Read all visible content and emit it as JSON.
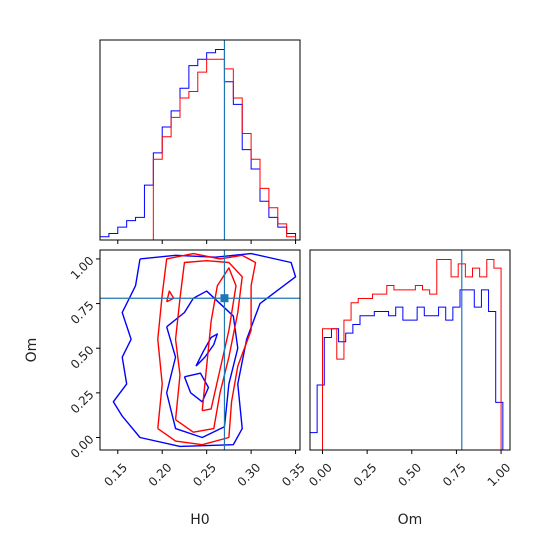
{
  "chart_data": [
    {
      "type": "histogram",
      "panel": "H0-marginal",
      "xlim": [
        0.13,
        0.355
      ],
      "truth_value": 0.27,
      "bin_width": 0.01,
      "series": [
        {
          "color": "#0000ff",
          "bins": [
            0.13,
            0.14,
            0.15,
            0.16,
            0.17,
            0.18,
            0.19,
            0.2,
            0.21,
            0.22,
            0.23,
            0.24,
            0.25,
            0.26,
            0.27,
            0.28,
            0.29,
            0.3,
            0.31,
            0.32,
            0.33,
            0.34,
            0.35
          ],
          "counts": [
            1,
            2,
            4,
            6,
            7,
            17,
            27,
            35,
            40,
            47,
            54,
            56,
            58,
            59,
            49,
            42,
            28,
            22,
            12,
            7,
            4,
            2
          ]
        },
        {
          "color": "#ff0000",
          "bins": [
            0.19,
            0.2,
            0.21,
            0.22,
            0.23,
            0.24,
            0.25,
            0.26,
            0.27,
            0.28,
            0.29,
            0.3,
            0.31,
            0.32,
            0.33,
            0.34,
            0.35
          ],
          "counts": [
            25,
            32,
            38,
            44,
            46,
            52,
            56,
            56,
            53,
            44,
            33,
            25,
            16,
            10,
            5,
            1
          ]
        }
      ]
    },
    {
      "type": "contour",
      "panel": "H0-Om-joint",
      "xlabel": "H0",
      "ylabel": "Om",
      "xlim": [
        0.13,
        0.355
      ],
      "ylim": [
        -0.07,
        1.05
      ],
      "xticks": [
        "0.15",
        "0.20",
        "0.25",
        "0.30",
        "0.35"
      ],
      "yticks": [
        "0.00",
        "0.25",
        "0.50",
        "0.75",
        "1.00"
      ],
      "truth_point": [
        0.27,
        0.78
      ],
      "series": [
        {
          "color": "#0000ff",
          "contours": [
            [
              [
                0.175,
                1.0
              ],
              [
                0.215,
                1.02
              ],
              [
                0.26,
                1.01
              ],
              [
                0.3,
                1.03
              ],
              [
                0.345,
                0.98
              ],
              [
                0.35,
                0.9
              ],
              [
                0.31,
                0.75
              ],
              [
                0.295,
                0.55
              ],
              [
                0.285,
                0.3
              ],
              [
                0.29,
                0.05
              ],
              [
                0.28,
                -0.04
              ],
              [
                0.22,
                -0.05
              ],
              [
                0.175,
                0.0
              ],
              [
                0.155,
                0.12
              ],
              [
                0.145,
                0.2
              ],
              [
                0.16,
                0.3
              ],
              [
                0.155,
                0.45
              ],
              [
                0.165,
                0.55
              ],
              [
                0.155,
                0.7
              ],
              [
                0.17,
                0.85
              ],
              [
                0.175,
                1.0
              ]
            ],
            [
              [
                0.205,
                0.62
              ],
              [
                0.215,
                0.45
              ],
              [
                0.205,
                0.25
              ],
              [
                0.215,
                0.05
              ],
              [
                0.245,
                0.0
              ],
              [
                0.27,
                0.06
              ],
              [
                0.275,
                0.3
              ],
              [
                0.285,
                0.5
              ],
              [
                0.28,
                0.68
              ],
              [
                0.265,
                0.75
              ],
              [
                0.25,
                0.82
              ],
              [
                0.235,
                0.78
              ],
              [
                0.225,
                0.7
              ],
              [
                0.205,
                0.62
              ]
            ],
            [
              [
                0.225,
                0.34
              ],
              [
                0.232,
                0.25
              ],
              [
                0.245,
                0.2
              ],
              [
                0.252,
                0.28
              ],
              [
                0.243,
                0.36
              ],
              [
                0.225,
                0.34
              ]
            ],
            [
              [
                0.238,
                0.4
              ],
              [
                0.248,
                0.45
              ],
              [
                0.258,
                0.52
              ],
              [
                0.262,
                0.58
              ],
              [
                0.255,
                0.56
              ],
              [
                0.246,
                0.48
              ],
              [
                0.238,
                0.4
              ]
            ]
          ]
        },
        {
          "color": "#ff0000",
          "contours": [
            [
              [
                0.195,
                0.05
              ],
              [
                0.2,
                0.3
              ],
              [
                0.195,
                0.55
              ],
              [
                0.2,
                0.8
              ],
              [
                0.205,
                1.0
              ],
              [
                0.235,
                1.03
              ],
              [
                0.265,
                1.0
              ],
              [
                0.29,
                1.02
              ],
              [
                0.305,
                0.98
              ],
              [
                0.3,
                0.85
              ],
              [
                0.3,
                0.6
              ],
              [
                0.285,
                0.4
              ],
              [
                0.278,
                0.2
              ],
              [
                0.275,
                0.0
              ],
              [
                0.245,
                -0.04
              ],
              [
                0.215,
                -0.02
              ],
              [
                0.195,
                0.05
              ]
            ],
            [
              [
                0.215,
                0.1
              ],
              [
                0.22,
                0.35
              ],
              [
                0.215,
                0.55
              ],
              [
                0.22,
                0.78
              ],
              [
                0.225,
                0.98
              ],
              [
                0.25,
                0.99
              ],
              [
                0.275,
                0.98
              ],
              [
                0.29,
                0.9
              ],
              [
                0.285,
                0.7
              ],
              [
                0.275,
                0.45
              ],
              [
                0.265,
                0.25
              ],
              [
                0.258,
                0.05
              ],
              [
                0.235,
                0.03
              ],
              [
                0.215,
                0.1
              ]
            ],
            [
              [
                0.245,
                0.15
              ],
              [
                0.25,
                0.4
              ],
              [
                0.255,
                0.65
              ],
              [
                0.262,
                0.85
              ],
              [
                0.275,
                0.95
              ],
              [
                0.283,
                0.85
              ],
              [
                0.275,
                0.6
              ],
              [
                0.265,
                0.38
              ],
              [
                0.255,
                0.16
              ],
              [
                0.245,
                0.15
              ]
            ],
            [
              [
                0.205,
                0.76
              ],
              [
                0.208,
                0.82
              ],
              [
                0.213,
                0.78
              ],
              [
                0.205,
                0.76
              ]
            ]
          ]
        }
      ]
    },
    {
      "type": "histogram",
      "panel": "Om-marginal",
      "xlabel": "Om",
      "xlim": [
        -0.07,
        1.05
      ],
      "xticks": [
        "0.00",
        "0.25",
        "0.50",
        "0.75",
        "1.00"
      ],
      "truth_value": 0.78,
      "bin_width": 0.04,
      "series": [
        {
          "color": "#0000ff",
          "bins": [
            -0.07,
            -0.03,
            0.01,
            0.05,
            0.09,
            0.13,
            0.17,
            0.21,
            0.25,
            0.29,
            0.33,
            0.37,
            0.41,
            0.45,
            0.49,
            0.53,
            0.57,
            0.61,
            0.65,
            0.69,
            0.73,
            0.77,
            0.81,
            0.85,
            0.89,
            0.93,
            0.97,
            1.01
          ],
          "counts": [
            4,
            15,
            26,
            28,
            25,
            27,
            29,
            31,
            31,
            32,
            32,
            31,
            33,
            30,
            30,
            33,
            31,
            31,
            33,
            30,
            33,
            37,
            37,
            33,
            37,
            32,
            11
          ]
        },
        {
          "color": "#ff0000",
          "bins": [
            0.0,
            0.04,
            0.08,
            0.12,
            0.16,
            0.2,
            0.24,
            0.28,
            0.32,
            0.36,
            0.4,
            0.44,
            0.48,
            0.52,
            0.56,
            0.6,
            0.64,
            0.68,
            0.72,
            0.76,
            0.8,
            0.84,
            0.88,
            0.92,
            0.96,
            1.0
          ],
          "counts": [
            28,
            28,
            21,
            30,
            34,
            35,
            35,
            36,
            36,
            38,
            37,
            37,
            37,
            38,
            37,
            36,
            44,
            44,
            40,
            43,
            40,
            42,
            40,
            44,
            42
          ]
        }
      ]
    }
  ]
}
